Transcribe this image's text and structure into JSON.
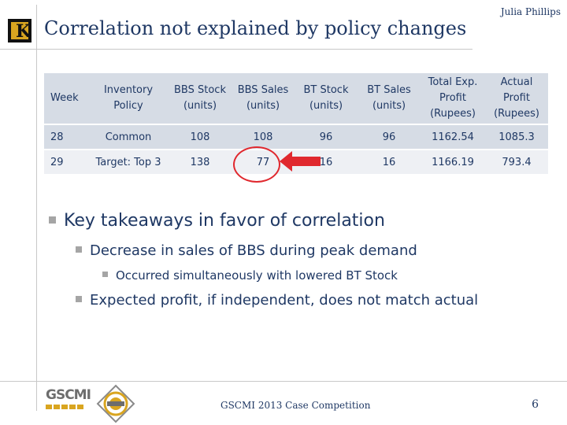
{
  "header": {
    "title": "Correlation not explained by policy changes",
    "author": "Julia Phillips",
    "logo_letter": "K"
  },
  "table": {
    "columns": [
      "Week",
      "Inventory Policy",
      "BBS Stock (units)",
      "BBS Sales (units)",
      "BT Stock (units)",
      "BT Sales (units)",
      "Total Exp. Profit (Rupees)",
      "Actual Profit (Rupees)"
    ],
    "rows": [
      [
        "28",
        "Common",
        "108",
        "108",
        "96",
        "96",
        "1162.54",
        "1085.3"
      ],
      [
        "29",
        "Target: Top 3",
        "138",
        "77",
        "16",
        "16",
        "1166.19",
        "793.4"
      ]
    ]
  },
  "bullets": {
    "level1": "Key takeaways in favor of correlation",
    "level2a": "Decrease in sales of BBS during peak demand",
    "level3": "Occurred simultaneously with lowered BT Stock",
    "level2b": "Expected profit, if independent, does not match actual"
  },
  "footer": {
    "logo_text": "GSCMI",
    "competition": "GSCMI 2013 Case Competition",
    "page_number": "6"
  },
  "colors": {
    "text": "#1f3864",
    "header_fill": "#d6dce5",
    "row_alt_fill": "#eef0f4",
    "highlight": "#e0282e",
    "bullet": "#a5a5a5",
    "logo_gold": "#d9a520"
  }
}
